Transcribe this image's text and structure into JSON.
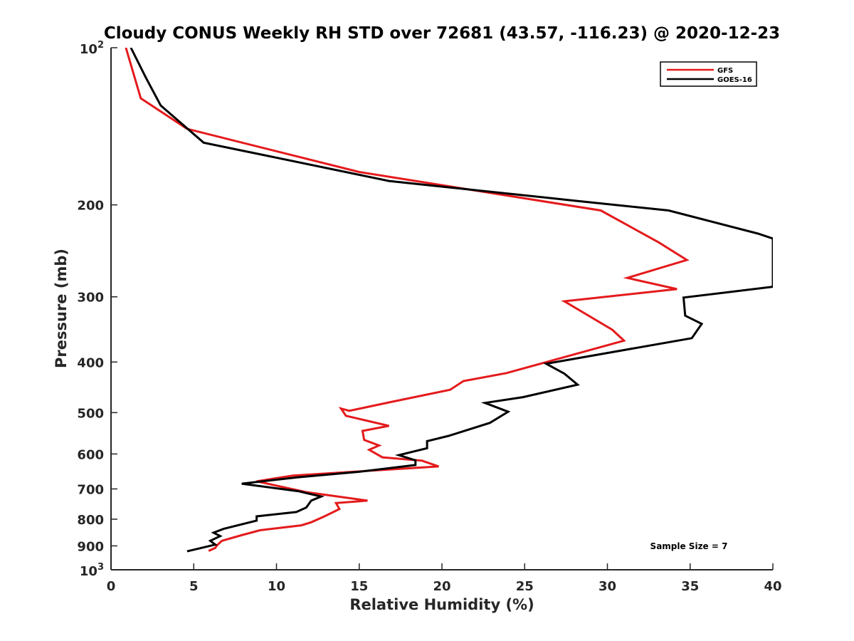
{
  "chart_data": {
    "type": "line",
    "title": "Cloudy CONUS Weekly RH STD over 72681 (43.57, -116.23) @ 2020-12-23",
    "xlabel": "Relative Humidity (%)",
    "ylabel": "Pressure (mb)",
    "xlim": [
      0,
      40
    ],
    "ylim": [
      100,
      1000
    ],
    "y_scale": "log",
    "y_reversed": true,
    "grid": false,
    "legend_position": "top-right",
    "x_ticks": [
      "0",
      "5",
      "10",
      "15",
      "20",
      "25",
      "30",
      "35",
      "40"
    ],
    "y_ticks": [
      {
        "value": 100,
        "base": "10",
        "exp": "2"
      },
      {
        "value": 200,
        "label": "200"
      },
      {
        "value": 300,
        "label": "300"
      },
      {
        "value": 400,
        "label": "400"
      },
      {
        "value": 500,
        "label": "500"
      },
      {
        "value": 600,
        "label": "600"
      },
      {
        "value": 700,
        "label": "700"
      },
      {
        "value": 800,
        "label": "800"
      },
      {
        "value": 900,
        "label": "900"
      },
      {
        "value": 1000,
        "base": "10",
        "exp": "3"
      }
    ],
    "series": [
      {
        "name": "GFS",
        "color": "#e41a1c",
        "points": [
          [
            0.9,
            100
          ],
          [
            1.8,
            125
          ],
          [
            4.6,
            143
          ],
          [
            15.0,
            173
          ],
          [
            29.6,
            205
          ],
          [
            33.1,
            236
          ],
          [
            34.8,
            255
          ],
          [
            31.2,
            276
          ],
          [
            34.2,
            290
          ],
          [
            27.4,
            306
          ],
          [
            30.3,
            347
          ],
          [
            31.0,
            364
          ],
          [
            23.9,
            420
          ],
          [
            21.3,
            435
          ],
          [
            20.5,
            452
          ],
          [
            16.8,
            478
          ],
          [
            14.4,
            496
          ],
          [
            13.9,
            491
          ],
          [
            14.2,
            507
          ],
          [
            16.8,
            530
          ],
          [
            15.2,
            542
          ],
          [
            15.3,
            564
          ],
          [
            16.2,
            578
          ],
          [
            15.6,
            589
          ],
          [
            16.4,
            609
          ],
          [
            18.8,
            618
          ],
          [
            19.8,
            634
          ],
          [
            11.0,
            660
          ],
          [
            8.8,
            677
          ],
          [
            11.8,
            710
          ],
          [
            15.5,
            737
          ],
          [
            13.6,
            745
          ],
          [
            13.8,
            765
          ],
          [
            12.9,
            790
          ],
          [
            12.1,
            811
          ],
          [
            11.5,
            822
          ],
          [
            9.0,
            840
          ],
          [
            7.8,
            860
          ],
          [
            6.7,
            880
          ],
          [
            6.4,
            898
          ],
          [
            6.3,
            908
          ],
          [
            5.9,
            920
          ]
        ]
      },
      {
        "name": "GOES-16",
        "color": "#000000",
        "points": [
          [
            1.2,
            100
          ],
          [
            2.1,
            114
          ],
          [
            3.0,
            129
          ],
          [
            5.6,
            152
          ],
          [
            16.8,
            180
          ],
          [
            27.8,
            196
          ],
          [
            33.7,
            205
          ],
          [
            39.1,
            227
          ],
          [
            40.0,
            232
          ],
          [
            40.0,
            287
          ],
          [
            34.6,
            301
          ],
          [
            34.7,
            326
          ],
          [
            35.7,
            338
          ],
          [
            35.1,
            360
          ],
          [
            26.3,
            403
          ],
          [
            27.4,
            421
          ],
          [
            28.2,
            442
          ],
          [
            24.9,
            467
          ],
          [
            22.6,
            479
          ],
          [
            24.0,
            498
          ],
          [
            22.9,
            523
          ],
          [
            20.4,
            554
          ],
          [
            19.1,
            567
          ],
          [
            19.1,
            585
          ],
          [
            17.4,
            603
          ],
          [
            18.4,
            617
          ],
          [
            18.4,
            630
          ],
          [
            15.0,
            649
          ],
          [
            11.3,
            665
          ],
          [
            7.9,
            684
          ],
          [
            11.3,
            707
          ],
          [
            12.7,
            724
          ],
          [
            12.1,
            737
          ],
          [
            11.8,
            760
          ],
          [
            11.2,
            775
          ],
          [
            8.8,
            790
          ],
          [
            8.8,
            805
          ],
          [
            6.8,
            835
          ],
          [
            6.2,
            849
          ],
          [
            6.6,
            862
          ],
          [
            6.0,
            880
          ],
          [
            6.3,
            895
          ],
          [
            4.6,
            922
          ]
        ]
      }
    ],
    "annotation": "Sample Size = 7"
  }
}
